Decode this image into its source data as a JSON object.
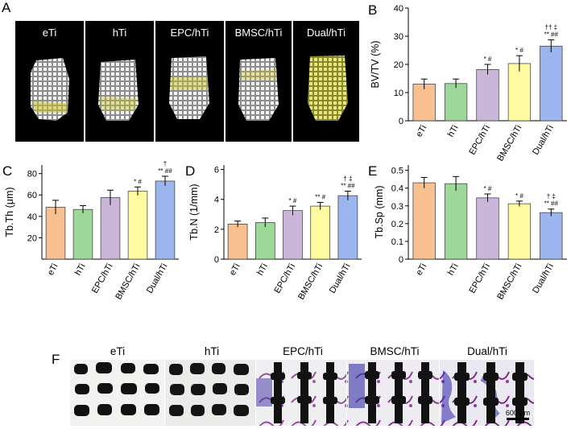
{
  "panels": {
    "a": "A",
    "b": "B",
    "c": "C",
    "d": "D",
    "e": "E",
    "f": "F"
  },
  "groups": [
    "eTi",
    "hTi",
    "EPC/hTi",
    "BMSC/hTi",
    "Dual/hTi"
  ],
  "colors": {
    "eTi": "#f9c08f",
    "hTi": "#9dd79a",
    "EPC/hTi": "#c9b6d9",
    "BMSC/hTi": "#fdfaa0",
    "Dual/hTi": "#9bb5ef"
  },
  "scale_bar": "600 μm",
  "chart_data": [
    {
      "id": "B",
      "type": "bar",
      "ylabel": "BV/TV (%)",
      "categories": [
        "eTi",
        "hTi",
        "EPC/hTi",
        "BMSC/hTi",
        "Dual/hTi"
      ],
      "values": [
        13,
        13.2,
        18.2,
        20.3,
        26.5
      ],
      "errors": [
        1.8,
        1.6,
        1.8,
        2.8,
        2.2
      ],
      "ylim": [
        0,
        40
      ],
      "yticks": [
        0,
        10,
        20,
        30,
        40
      ],
      "annotations": [
        "",
        "",
        "* #",
        "* #",
        "†† ‡\n** ##"
      ]
    },
    {
      "id": "C",
      "type": "bar",
      "ylabel": "Tb.Th (μm)",
      "categories": [
        "eTi",
        "hTi",
        "EPC/hTi",
        "BMSC/hTi",
        "Dual/hTi"
      ],
      "values": [
        48.5,
        46.5,
        57.5,
        63.5,
        73
      ],
      "errors": [
        6.5,
        3.5,
        7,
        4,
        4.5
      ],
      "ylim": [
        0,
        88
      ],
      "yticks": [
        20,
        40,
        60,
        80
      ],
      "annotations": [
        "",
        "",
        "",
        "* #",
        "†\n** ##"
      ]
    },
    {
      "id": "D",
      "type": "bar",
      "ylabel": "Tb.N (1/mm)",
      "categories": [
        "eTi",
        "hTi",
        "EPC/hTi",
        "BMSC/hTi",
        "Dual/hTi"
      ],
      "values": [
        2.35,
        2.45,
        3.25,
        3.55,
        4.25
      ],
      "errors": [
        0.2,
        0.3,
        0.3,
        0.25,
        0.3
      ],
      "ylim": [
        0,
        6.3
      ],
      "yticks": [
        0,
        2,
        4,
        6
      ],
      "annotations": [
        "",
        "",
        "* #",
        "** #",
        "† ‡\n** ##"
      ]
    },
    {
      "id": "E",
      "type": "bar",
      "ylabel": "Tb.Sp  (mm)",
      "categories": [
        "eTi",
        "hTi",
        "EPC/hTi",
        "BMSC/hTi",
        "Dual/hTi"
      ],
      "values": [
        0.43,
        0.425,
        0.345,
        0.312,
        0.262
      ],
      "errors": [
        0.03,
        0.04,
        0.022,
        0.015,
        0.02
      ],
      "ylim": [
        0,
        0.53
      ],
      "yticks": [
        0,
        0.1,
        0.2,
        0.3,
        0.4,
        0.5
      ],
      "annotations": [
        "",
        "",
        "* #",
        "* #",
        "† ‡\n** ##"
      ]
    }
  ]
}
